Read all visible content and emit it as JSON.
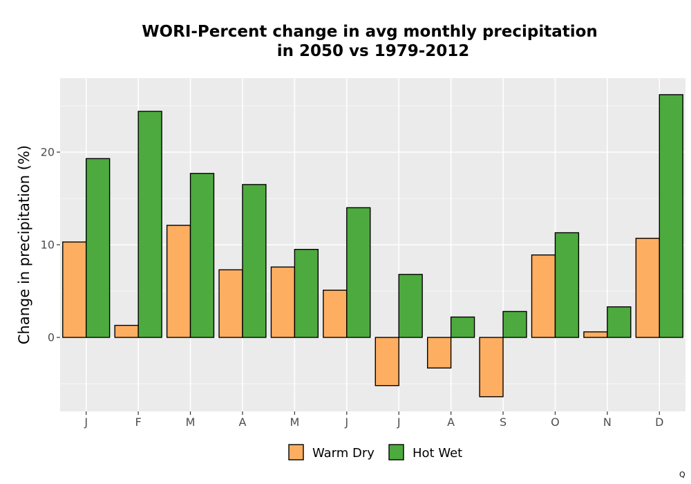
{
  "chart_data": {
    "type": "bar",
    "title": "WORI-Percent change in avg monthly precipitation",
    "subtitle": "in 2050 vs 1979-2012",
    "xlabel": "",
    "ylabel": "Change in precipitation (%)",
    "ylim": [
      -8,
      27
    ],
    "yticks": [
      0,
      10,
      20
    ],
    "grid": true,
    "legend_position": "bottom",
    "categories": [
      "J",
      "F",
      "M",
      "A",
      "M",
      "J",
      "J",
      "A",
      "S",
      "O",
      "N",
      "D"
    ],
    "series": [
      {
        "name": "Warm Dry",
        "color": "#FDAE61",
        "values": [
          10.3,
          1.3,
          12.1,
          7.3,
          7.6,
          5.1,
          -5.2,
          -3.3,
          -6.4,
          8.9,
          0.6,
          10.7
        ]
      },
      {
        "name": "Hot Wet",
        "color": "#4DAA3E",
        "values": [
          19.3,
          24.4,
          17.7,
          16.5,
          9.5,
          14.0,
          6.8,
          2.2,
          2.8,
          11.3,
          3.3,
          26.2
        ]
      }
    ]
  },
  "corner_mark": "Q"
}
